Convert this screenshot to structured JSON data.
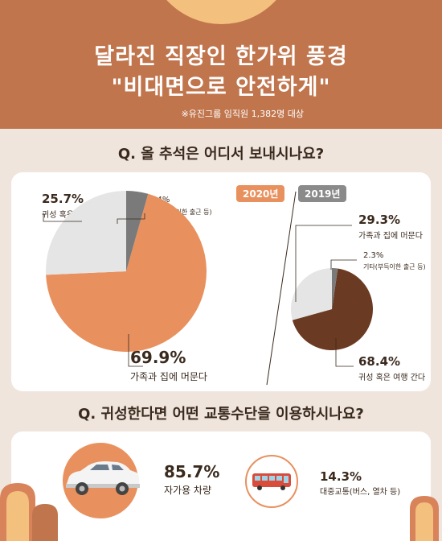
{
  "header": {
    "title_line1": "달라진 직장인 한가위 풍경",
    "title_line2": "\"비대면으로 안전하게\"",
    "note": "※유진그룹 임직원 1,382명 대상"
  },
  "question1": "Q. 올 추석은 어디서 보내시나요?",
  "question2": "Q. 귀성한다면 어떤 교통수단을 이용하시나요?",
  "colors": {
    "orange": "#e8915e",
    "gray": "#e5e5e5",
    "dark": "#7a7a7a",
    "brown": "#6b3a22"
  },
  "chart_data": [
    {
      "type": "pie",
      "title": "2020년",
      "slices": [
        {
          "label": "가족과 집에 머문다",
          "pct_text": "69.9%",
          "value": 69.9
        },
        {
          "label": "귀성 혹은 여행 간다",
          "pct_text": "25.7%",
          "value": 25.7
        },
        {
          "label": "기타(부득이한 출근 등)",
          "pct_text": "4.4%",
          "value": 4.4
        }
      ]
    },
    {
      "type": "pie",
      "title": "2019년",
      "slices": [
        {
          "label": "귀성 혹은 여행 간다",
          "pct_text": "68.4%",
          "value": 68.4
        },
        {
          "label": "가족과 집에 머문다",
          "pct_text": "29.3%",
          "value": 29.3
        },
        {
          "label": "기타(부득이한 출근 등)",
          "pct_text": "2.3%",
          "value": 2.3
        }
      ]
    },
    {
      "type": "bar",
      "title": "",
      "items": [
        {
          "label": "자가용 차량",
          "pct_text": "85.7%",
          "value": 85.7
        },
        {
          "label": "대중교통(버스, 열차 등)",
          "pct_text": "14.3%",
          "value": 14.3
        }
      ]
    }
  ]
}
